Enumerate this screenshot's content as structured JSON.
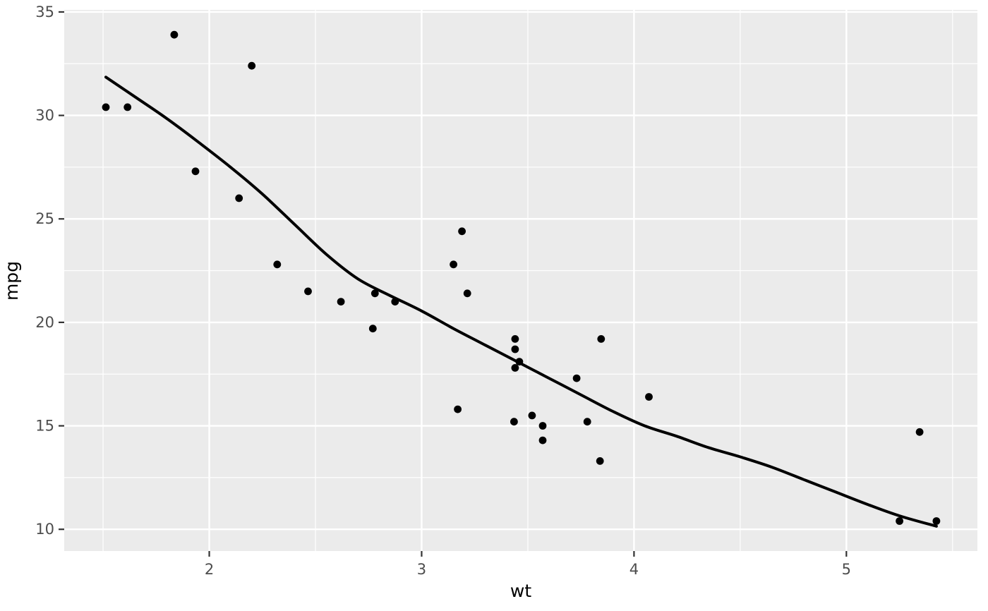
{
  "figure": {
    "background_color": "#FFFFFF",
    "panel_background_color": "#EBEBEB",
    "grid_color": "#FFFFFF",
    "point_color": "#000000",
    "smooth_line_color": "#000000",
    "tick_mark_color": "#333333",
    "tick_label_color": "#4D4D4D",
    "axis_title_color": "#000000"
  },
  "chart_data": {
    "type": "scatter",
    "title": "",
    "xlabel": "wt",
    "ylabel": "mpg",
    "xlim": [
      1.317,
      5.617
    ],
    "ylim": [
      8.95,
      35.1
    ],
    "x_ticks": [
      2,
      3,
      4,
      5
    ],
    "y_ticks": [
      10,
      15,
      20,
      25,
      30,
      35
    ],
    "x_minor_breaks": [
      1.5,
      2.5,
      3.5,
      4.5,
      5.5
    ],
    "y_minor_breaks": [
      12.5,
      17.5,
      22.5,
      27.5,
      32.5
    ],
    "grid": "on",
    "legend_position": "none",
    "points_wt_mpg": [
      [
        2.62,
        21.0
      ],
      [
        2.875,
        21.0
      ],
      [
        2.32,
        22.8
      ],
      [
        3.215,
        21.4
      ],
      [
        3.44,
        18.7
      ],
      [
        3.46,
        18.1
      ],
      [
        3.57,
        14.3
      ],
      [
        3.19,
        24.4
      ],
      [
        3.15,
        22.8
      ],
      [
        3.44,
        19.2
      ],
      [
        3.44,
        17.8
      ],
      [
        4.07,
        16.4
      ],
      [
        3.73,
        17.3
      ],
      [
        3.78,
        15.2
      ],
      [
        5.25,
        10.4
      ],
      [
        5.424,
        10.4
      ],
      [
        5.345,
        14.7
      ],
      [
        2.2,
        32.4
      ],
      [
        1.615,
        30.4
      ],
      [
        1.835,
        33.9
      ],
      [
        2.465,
        21.5
      ],
      [
        3.52,
        15.5
      ],
      [
        3.435,
        15.2
      ],
      [
        3.84,
        13.3
      ],
      [
        3.845,
        19.2
      ],
      [
        1.935,
        27.3
      ],
      [
        2.14,
        26.0
      ],
      [
        1.513,
        30.4
      ],
      [
        3.17,
        15.8
      ],
      [
        2.77,
        19.7
      ],
      [
        3.57,
        15.0
      ],
      [
        2.78,
        21.4
      ]
    ],
    "smooth_line_wt_mpg": [
      [
        1.513,
        31.85
      ],
      [
        1.65,
        30.9
      ],
      [
        1.8,
        29.85
      ],
      [
        1.95,
        28.7
      ],
      [
        2.1,
        27.5
      ],
      [
        2.25,
        26.2
      ],
      [
        2.4,
        24.75
      ],
      [
        2.55,
        23.3
      ],
      [
        2.7,
        22.1
      ],
      [
        2.85,
        21.3
      ],
      [
        3.0,
        20.55
      ],
      [
        3.15,
        19.7
      ],
      [
        3.3,
        18.9
      ],
      [
        3.45,
        18.1
      ],
      [
        3.6,
        17.3
      ],
      [
        3.75,
        16.5
      ],
      [
        3.9,
        15.7
      ],
      [
        4.05,
        15.0
      ],
      [
        4.2,
        14.5
      ],
      [
        4.35,
        13.95
      ],
      [
        4.5,
        13.5
      ],
      [
        4.65,
        13.0
      ],
      [
        4.8,
        12.4
      ],
      [
        4.95,
        11.8
      ],
      [
        5.1,
        11.2
      ],
      [
        5.25,
        10.65
      ],
      [
        5.424,
        10.15
      ]
    ]
  }
}
